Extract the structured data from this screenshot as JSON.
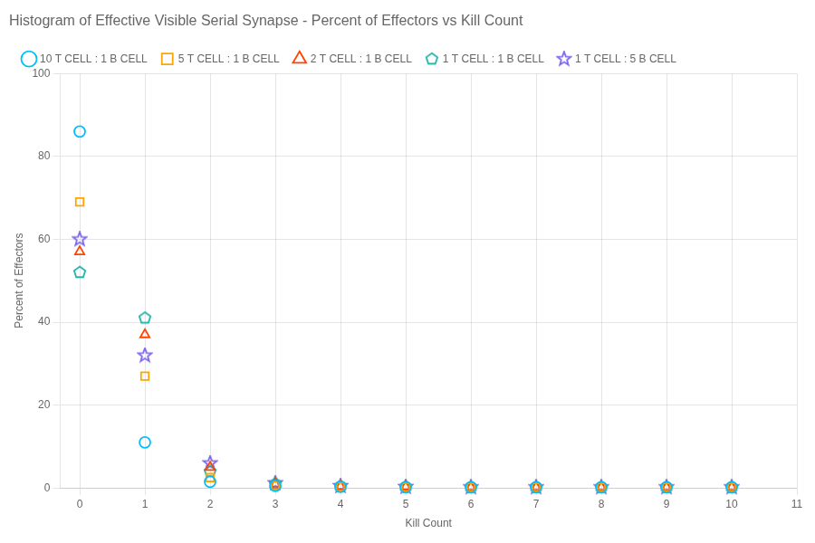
{
  "chart_data": {
    "type": "scatter",
    "title": "Histogram of Effective Visible Serial Synapse - Percent of Effectors vs Kill Count",
    "x_label": "Kill Count",
    "y_label": "Percent of Effectors",
    "x": [
      0,
      1,
      2,
      3,
      4,
      5,
      6,
      7,
      8,
      9,
      10
    ],
    "series": [
      {
        "name": "10 T CELL : 1 B CELL",
        "color": "#00bfff",
        "marker": "circle",
        "values": [
          86.0,
          11.0,
          1.5,
          0.5,
          0.3,
          0.2,
          0.2,
          0.2,
          0.2,
          0.2,
          0.2
        ]
      },
      {
        "name": "5 T CELL : 1 B CELL",
        "color": "#ffa500",
        "marker": "square",
        "values": [
          69.0,
          27.0,
          2.5,
          0.5,
          0.3,
          0.2,
          0.2,
          0.2,
          0.2,
          0.2,
          0.2
        ]
      },
      {
        "name": "2 T CELL : 1 B CELL",
        "color": "#ff4500",
        "marker": "triangle",
        "values": [
          57.0,
          37.0,
          5.0,
          1.0,
          0.4,
          0.3,
          0.2,
          0.2,
          0.2,
          0.2,
          0.2
        ]
      },
      {
        "name": "1 T CELL : 1 B CELL",
        "color": "#20b2aa",
        "marker": "pentagon",
        "values": [
          52.0,
          41.0,
          4.0,
          1.0,
          0.4,
          0.3,
          0.2,
          0.2,
          0.2,
          0.2,
          0.2
        ]
      },
      {
        "name": "1 T CELL : 5 B CELL",
        "color": "#7b68ee",
        "marker": "star",
        "values": [
          60.0,
          32.0,
          6.0,
          1.2,
          0.5,
          0.3,
          0.2,
          0.2,
          0.2,
          0.2,
          0.2
        ]
      }
    ],
    "xlim": [
      -0.3,
      11
    ],
    "ylim": [
      0,
      100
    ],
    "xticks": [
      0,
      1,
      2,
      3,
      4,
      5,
      6,
      7,
      8,
      9,
      10,
      11
    ],
    "yticks": [
      0,
      20,
      40,
      60,
      80,
      100
    ],
    "grid": true,
    "legend": "upper left"
  }
}
